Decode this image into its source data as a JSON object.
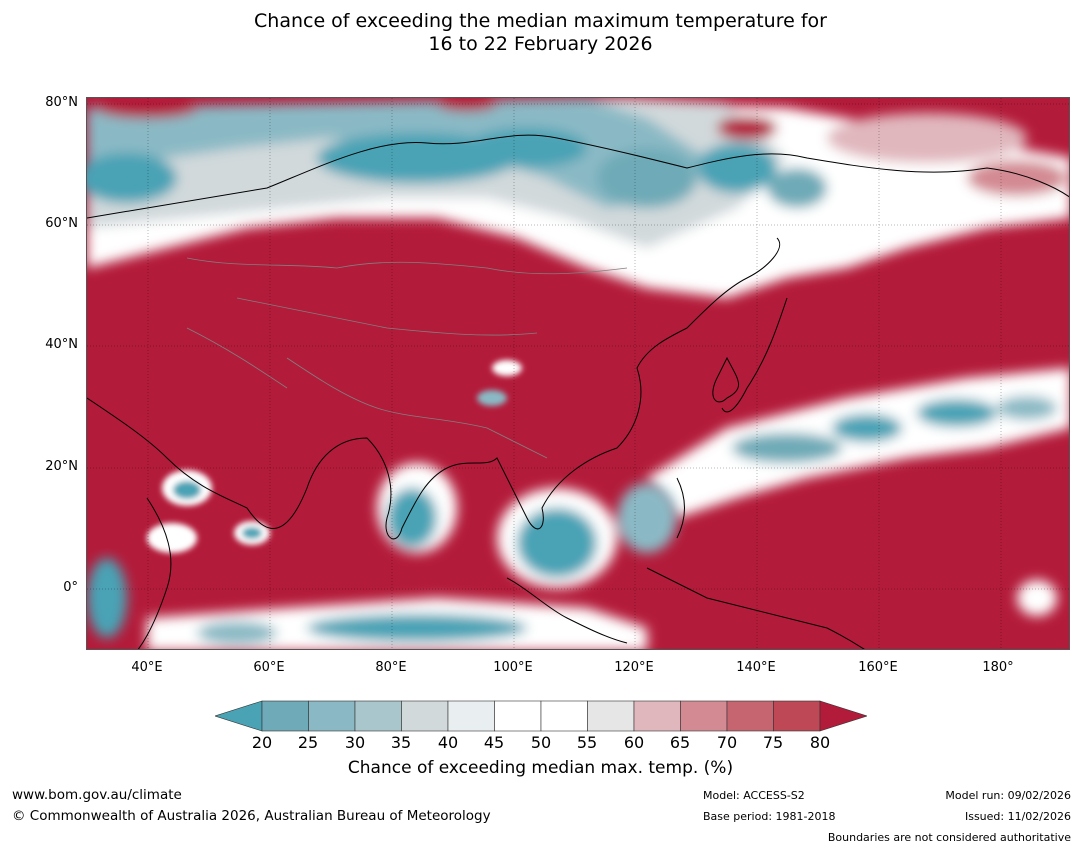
{
  "title": {
    "line1": "Chance of exceeding the median maximum temperature for",
    "line2": "16 to 22 February 2026"
  },
  "map": {
    "latitude_labels": [
      "80°N",
      "60°N",
      "40°N",
      "20°N",
      "0°"
    ],
    "longitude_labels": [
      "40°E",
      "60°E",
      "80°E",
      "100°E",
      "120°E",
      "140°E",
      "160°E",
      "180°"
    ],
    "colors": {
      "ocean_high": "#b31b3a",
      "land_border": "#000000",
      "country_border": "#808080",
      "low_teal": "#4aa3b5"
    }
  },
  "colorbar": {
    "ticks": [
      "20",
      "25",
      "30",
      "35",
      "40",
      "45",
      "50",
      "55",
      "60",
      "65",
      "70",
      "75",
      "80"
    ],
    "colors": [
      "#4aa3b5",
      "#6eaab7",
      "#8ab9c5",
      "#a9c6cd",
      "#d1d9db",
      "#e9eef0",
      "#ffffff",
      "#ffffff",
      "#e6e6e6",
      "#e0b7bd",
      "#d38a93",
      "#c66470",
      "#bf4857",
      "#b31b3a"
    ],
    "label": "Chance of exceeding median max. temp. (%)"
  },
  "footer": {
    "url": "www.bom.gov.au/climate",
    "copyright": "© Commonwealth of Australia 2026, Australian Bureau of Meteorology",
    "model": "Model: ACCESS-S2",
    "base_period": "Base period: 1981-2018",
    "model_run": "Model run: 09/02/2026",
    "issued": "Issued: 11/02/2026",
    "boundaries_note": "Boundaries are not considered authoritative"
  }
}
